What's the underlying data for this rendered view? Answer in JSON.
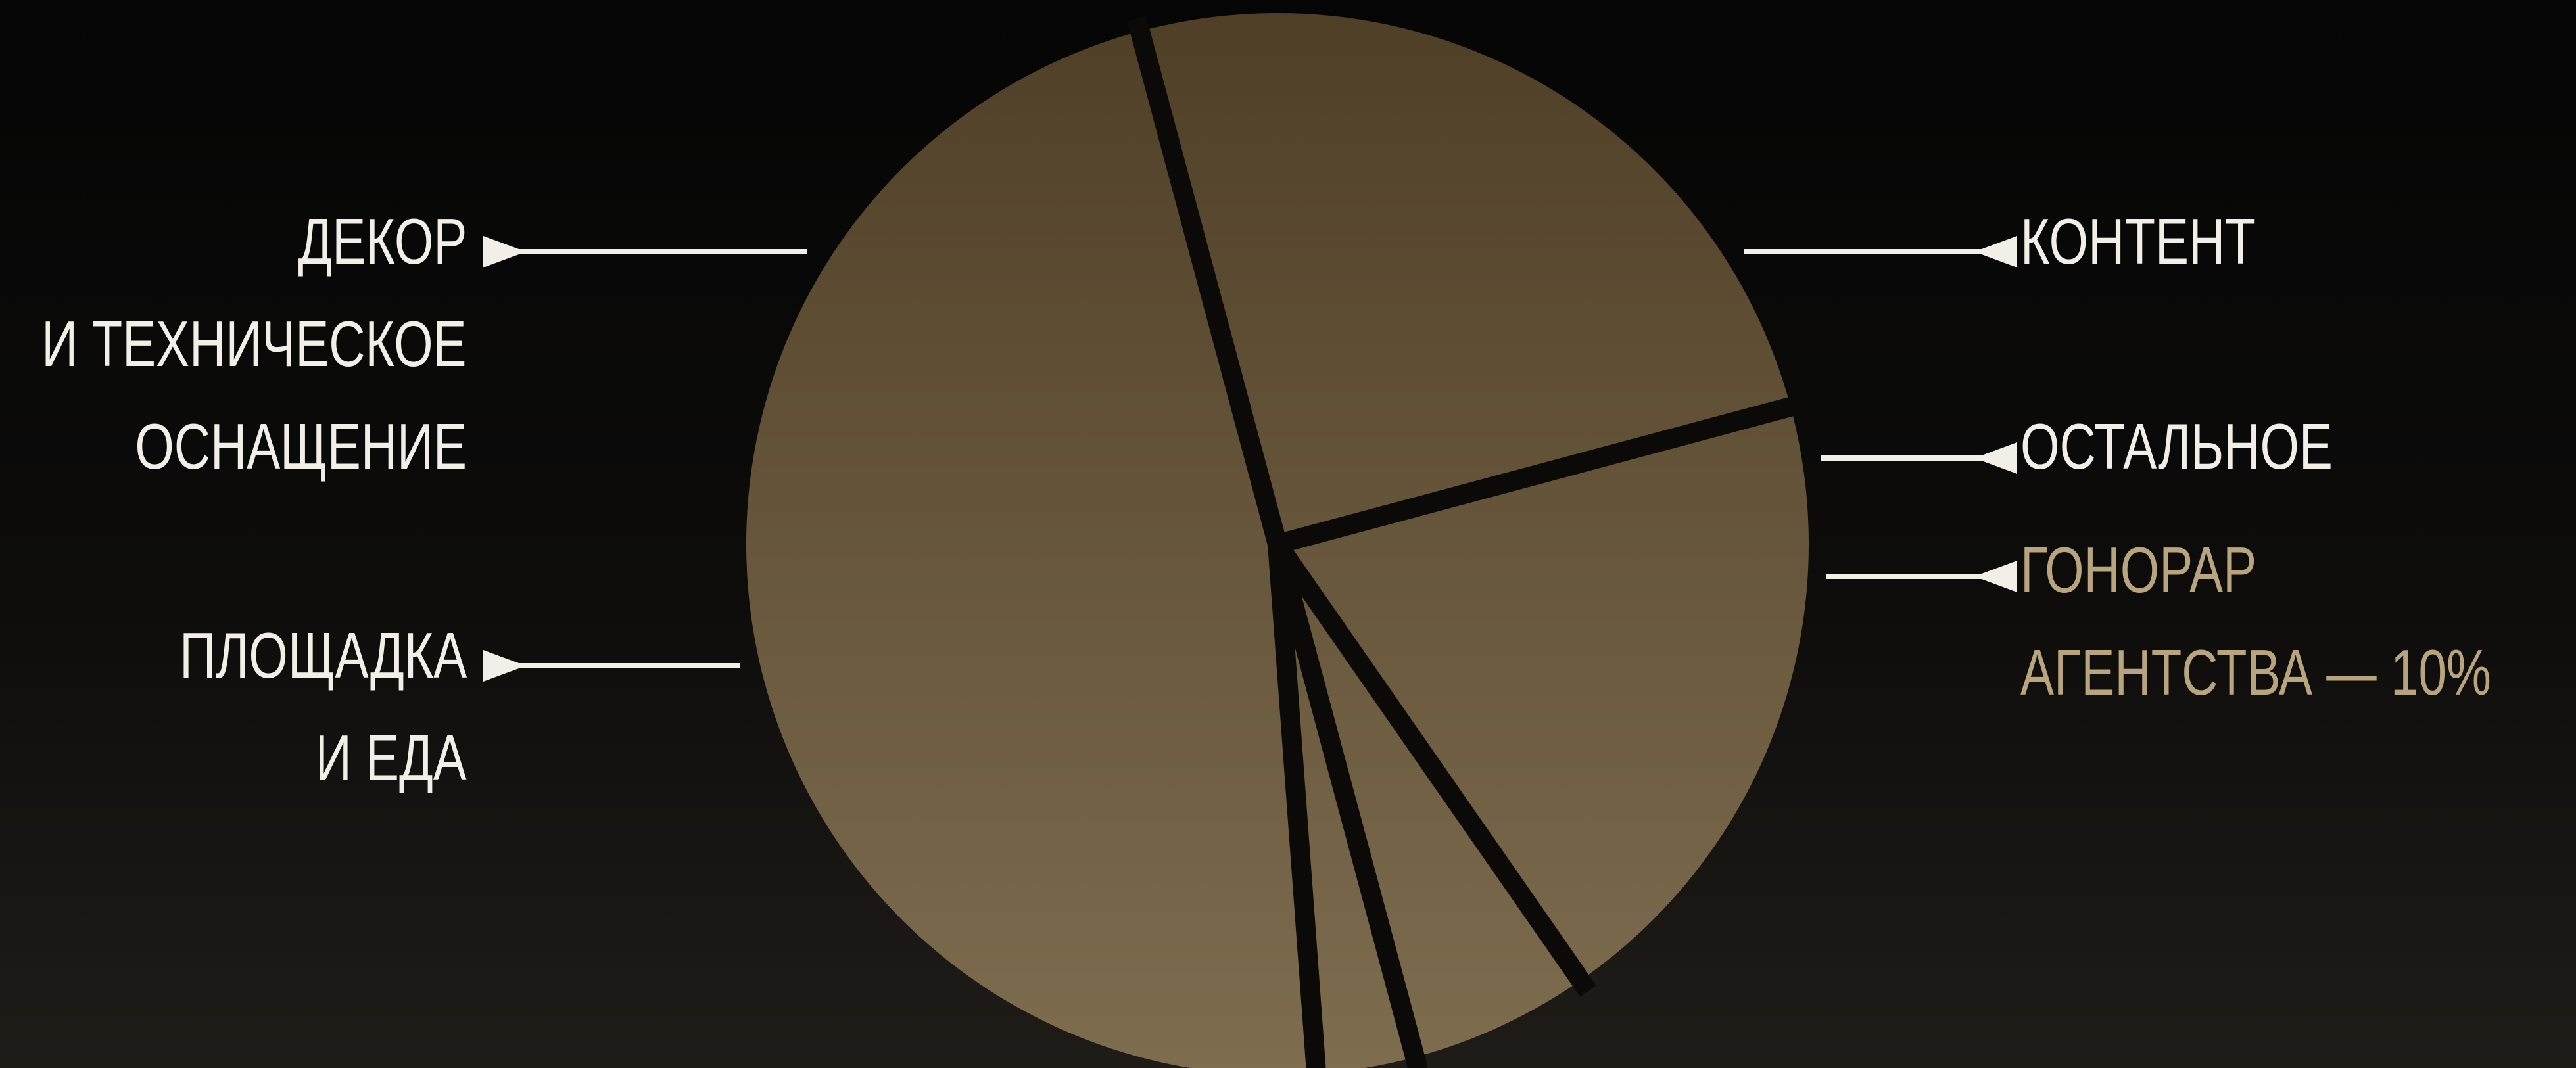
{
  "colors": {
    "slice_top": "#4f3f27",
    "slice_bottom": "#7e6d4f",
    "gap": "#0b0a09",
    "label_text": "#f2efe9",
    "accent_text": "#b8a57f",
    "leader_line": "#f2efe9"
  },
  "chart_data": {
    "type": "pie",
    "title": "",
    "slices": [
      {
        "label": "КОНТЕНТ",
        "value": 19.5
      },
      {
        "label": "ОСТАЛЬНОЕ",
        "value": 5.5
      },
      {
        "label": "ГОНОРАР АГЕНТСТВА — 10%",
        "value": 3
      },
      {
        "label": "ПЛОЩАДКА И ЕДА",
        "value": 47
      },
      {
        "label": "ДЕКОР И ТЕХНИЧЕСКОЕ ОСНАЩЕНИЕ",
        "value": 25
      }
    ]
  },
  "labels": {
    "dekor": [
      "ДЕКОР",
      "И ТЕХНИЧЕСКОЕ",
      "ОСНАЩЕНИЕ"
    ],
    "ploshchadka": [
      "ПЛОЩАДКА",
      "И ЕДА"
    ],
    "kontent": [
      "КОНТЕНТ"
    ],
    "ostalnoe": [
      "ОСТАЛЬНОЕ"
    ],
    "gonorar": [
      "ГОНОРАР",
      "АГЕНТСТВА — 10%"
    ]
  }
}
